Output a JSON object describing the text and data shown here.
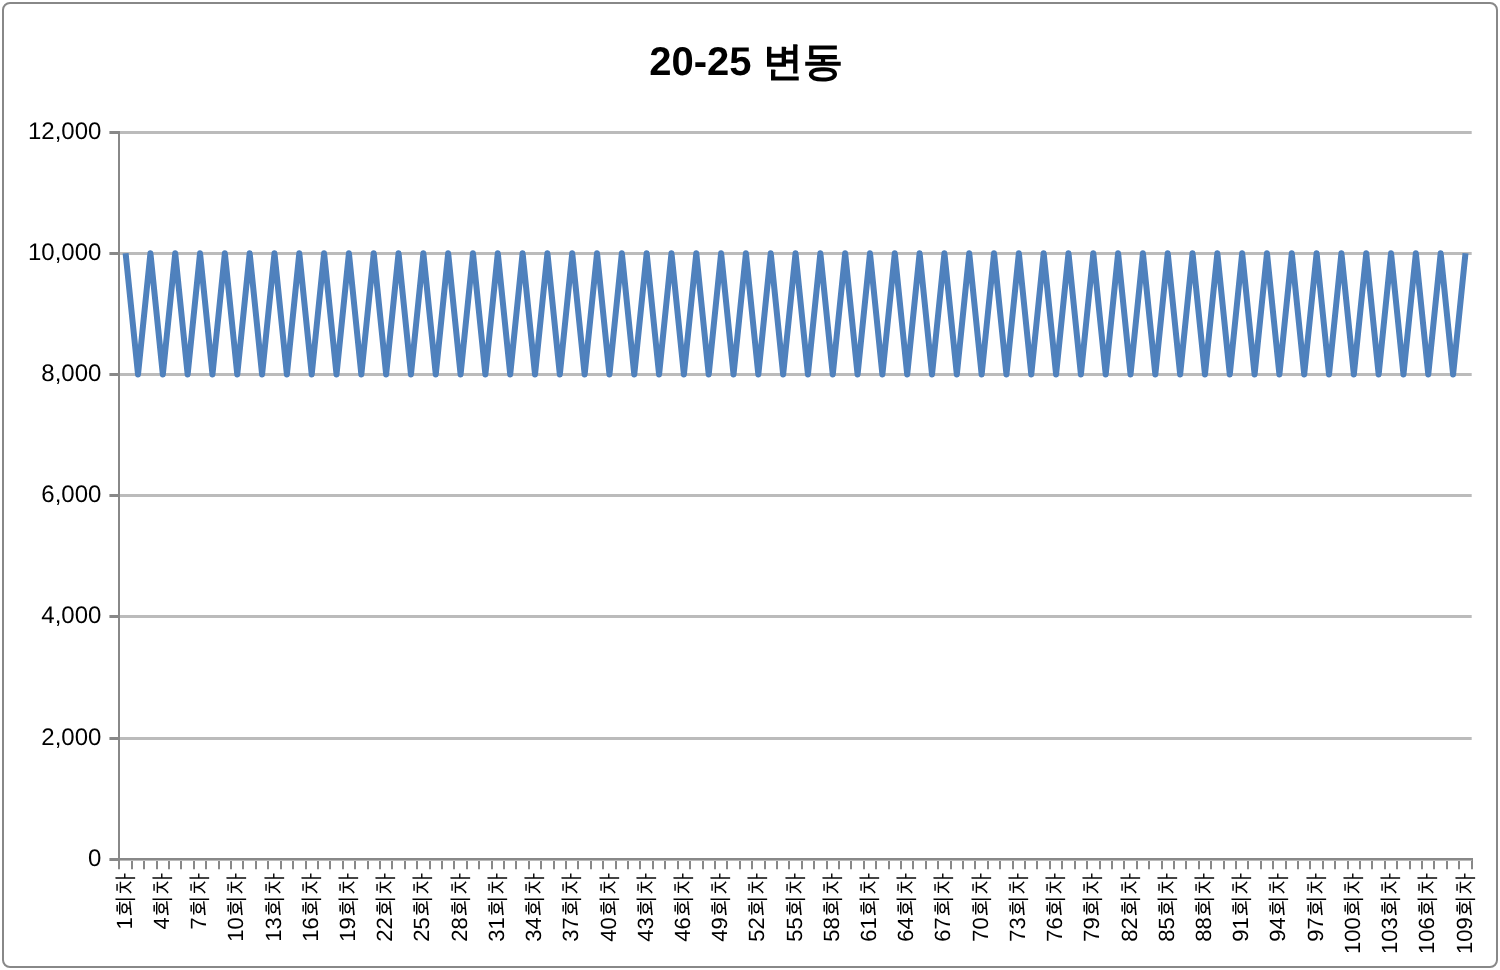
{
  "chart_data": {
    "type": "line",
    "title": "20-25 변동",
    "categories": [
      "1회차",
      null,
      null,
      "4회차",
      null,
      null,
      "7회차",
      null,
      null,
      "10회차",
      null,
      null,
      "13회차",
      null,
      null,
      "16회차",
      null,
      null,
      "19회차",
      null,
      null,
      "22회차",
      null,
      null,
      "25회차",
      null,
      null,
      "28회차",
      null,
      null,
      "31회차",
      null,
      null,
      "34회차",
      null,
      null,
      "37회차",
      null,
      null,
      "40회차",
      null,
      null,
      "43회차",
      null,
      null,
      "46회차",
      null,
      null,
      "49회차",
      null,
      null,
      "52회차",
      null,
      null,
      "55회차",
      null,
      null,
      "58회차",
      null,
      null,
      "61회차",
      null,
      null,
      "64회차",
      null,
      null,
      "67회차",
      null,
      null,
      "70회차",
      null,
      null,
      "73회차",
      null,
      null,
      "76회차",
      null,
      null,
      "79회차",
      null,
      null,
      "82회차",
      null,
      null,
      "85회차",
      null,
      null,
      "88회차",
      null,
      null,
      "91회차",
      null,
      null,
      "94회차",
      null,
      null,
      "97회차",
      null,
      null,
      "100회차",
      null,
      null,
      "103회차",
      null,
      null,
      "106회차",
      null,
      null,
      "109회차"
    ],
    "series": [
      {
        "color": "#4f81bd",
        "values": [
          10000,
          8000,
          10000,
          8000,
          10000,
          8000,
          10000,
          8000,
          10000,
          8000,
          10000,
          8000,
          10000,
          8000,
          10000,
          8000,
          10000,
          8000,
          10000,
          8000,
          10000,
          8000,
          10000,
          8000,
          10000,
          8000,
          10000,
          8000,
          10000,
          8000,
          10000,
          8000,
          10000,
          8000,
          10000,
          8000,
          10000,
          8000,
          10000,
          8000,
          10000,
          8000,
          10000,
          8000,
          10000,
          8000,
          10000,
          8000,
          10000,
          8000,
          10000,
          8000,
          10000,
          8000,
          10000,
          8000,
          10000,
          8000,
          10000,
          8000,
          10000,
          8000,
          10000,
          8000,
          10000,
          8000,
          10000,
          8000,
          10000,
          8000,
          10000,
          8000,
          10000,
          8000,
          10000,
          8000,
          10000,
          8000,
          10000,
          8000,
          10000,
          8000,
          10000,
          8000,
          10000,
          8000,
          10000,
          8000,
          10000,
          8000,
          10000,
          8000,
          10000,
          8000,
          10000,
          8000,
          10000,
          8000,
          10000,
          8000,
          10000,
          8000,
          10000,
          8000,
          10000,
          8000,
          10000,
          8000,
          10000
        ]
      }
    ],
    "ylim": [
      0,
      12000
    ],
    "yticks": [
      0,
      {
        "value": 2000,
        "label": "2,000"
      },
      {
        "value": 4000,
        "label": "4,000"
      },
      {
        "value": 6000,
        "label": "6,000"
      },
      {
        "value": 8000,
        "label": "8,000"
      },
      {
        "value": 10000,
        "label": "10,000"
      },
      {
        "value": 12000,
        "label": "12,000"
      }
    ],
    "grid": "y",
    "legend": false,
    "marker": "none",
    "line_style": "solid"
  }
}
